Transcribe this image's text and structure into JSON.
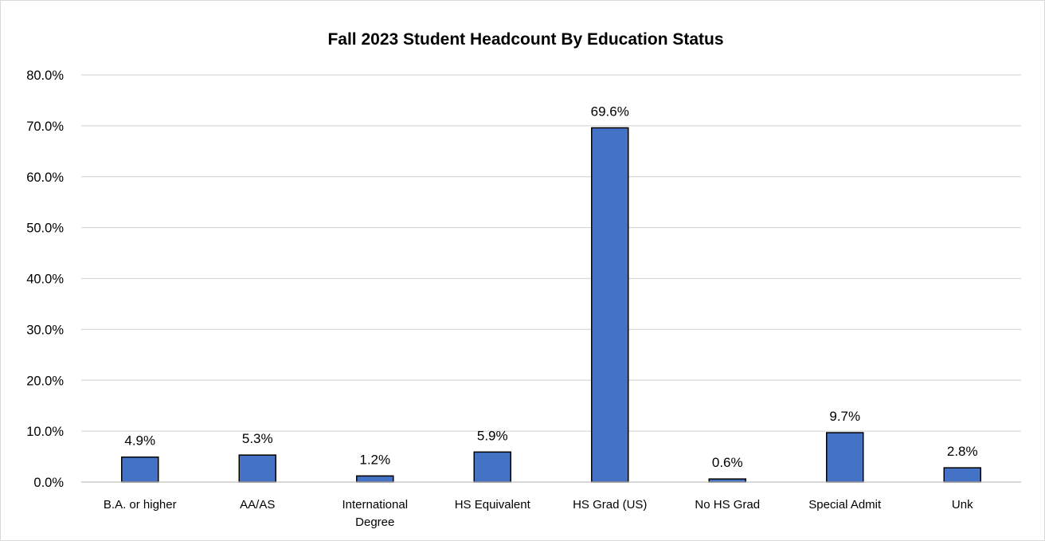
{
  "chart_data": {
    "type": "bar",
    "title": "Fall 2023 Student Headcount By Education Status",
    "xlabel": "",
    "ylabel": "",
    "categories": [
      "B.A. or higher",
      "AA/AS",
      "International Degree",
      "HS Equivalent",
      "HS Grad (US)",
      "No HS Grad",
      "Special Admit",
      "Unk"
    ],
    "values": [
      4.9,
      5.3,
      1.2,
      5.9,
      69.6,
      0.6,
      9.7,
      2.8
    ],
    "data_labels": [
      "4.9%",
      "5.3%",
      "1.2%",
      "5.9%",
      "69.6%",
      "0.6%",
      "9.7%",
      "2.8%"
    ],
    "ylim": [
      0,
      80
    ],
    "yticks": [
      0,
      10,
      20,
      30,
      40,
      50,
      60,
      70,
      80
    ],
    "ytick_labels": [
      "0.0%",
      "10.0%",
      "20.0%",
      "30.0%",
      "40.0%",
      "50.0%",
      "60.0%",
      "70.0%",
      "80.0%"
    ],
    "grid": true,
    "legend": "none",
    "bar_color": "#4472c4",
    "bar_outline_color": "#000000"
  }
}
